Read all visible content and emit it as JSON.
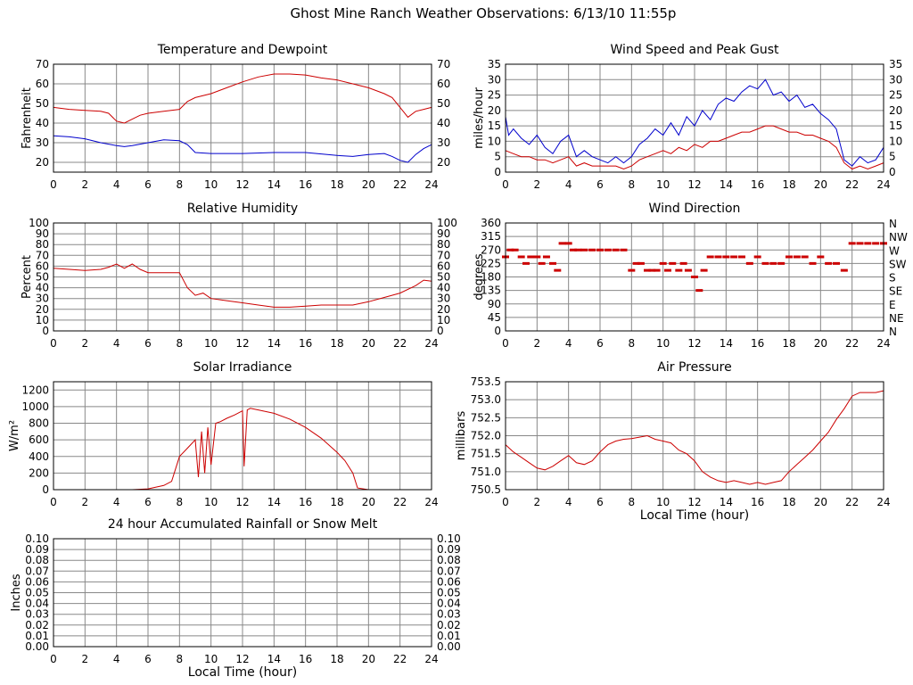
{
  "page": {
    "title": "Ghost Mine Ranch Weather Observations: 6/13/10 11:55p"
  },
  "colors": {
    "temperature": "#cc0000",
    "dewpoint": "#0000cc",
    "grid": "#888888",
    "axis": "#000000"
  },
  "chart_data": [
    {
      "id": "temp",
      "type": "line",
      "title": "Temperature and Dewpoint",
      "ylabel": "Fahrenheit",
      "ylim": [
        15,
        70
      ],
      "yticks": [
        20,
        30,
        40,
        50,
        60,
        70
      ],
      "ytick_labels": [
        "20",
        "30",
        "40",
        "50",
        "60",
        "70"
      ],
      "right_axis": true,
      "xlim": [
        0,
        24
      ],
      "xticks": [
        0,
        2,
        4,
        6,
        8,
        10,
        12,
        14,
        16,
        18,
        20,
        22,
        24
      ],
      "xtick_labels": [
        "0",
        "2",
        "4",
        "6",
        "8",
        "10",
        "12",
        "14",
        "16",
        "18",
        "20",
        "22",
        "24"
      ],
      "series": [
        {
          "color": "#cc0000",
          "x": [
            0,
            0.5,
            1,
            2,
            3,
            3.5,
            4,
            4.5,
            5,
            5.5,
            6,
            7,
            8,
            8.5,
            9,
            10,
            11,
            12,
            13,
            14,
            15,
            16,
            17,
            18,
            19,
            20,
            21,
            21.5,
            22,
            22.5,
            23,
            23.5,
            24
          ],
          "y": [
            48,
            47.5,
            47,
            46.5,
            46,
            45,
            41,
            40,
            42,
            44,
            45,
            46,
            47,
            51,
            53,
            55,
            58,
            61,
            63.5,
            65,
            65,
            64.5,
            63,
            62,
            60,
            58,
            55,
            53,
            48,
            43,
            46,
            47,
            48
          ]
        },
        {
          "color": "#0000cc",
          "x": [
            0,
            1,
            2,
            3,
            4,
            4.5,
            5,
            6,
            7,
            8,
            8.5,
            9,
            10,
            12,
            14,
            16,
            18,
            19,
            20,
            21,
            21.5,
            22,
            22.5,
            23,
            23.5,
            24
          ],
          "y": [
            33.5,
            33,
            32,
            30,
            28.5,
            28,
            28.5,
            30,
            31.5,
            31,
            29,
            25,
            24.5,
            24.5,
            25,
            25,
            23.5,
            23,
            24,
            24.5,
            23,
            21,
            20,
            24,
            27,
            29
          ]
        }
      ]
    },
    {
      "id": "wind",
      "type": "line",
      "title": "Wind Speed and Peak Gust",
      "ylabel": "miles/hour",
      "ylim": [
        0,
        35
      ],
      "yticks": [
        0,
        5,
        10,
        15,
        20,
        25,
        30,
        35
      ],
      "ytick_labels": [
        "0",
        "5",
        "10",
        "15",
        "20",
        "25",
        "30",
        "35"
      ],
      "right_axis": true,
      "xlim": [
        0,
        24
      ],
      "xticks": [
        0,
        2,
        4,
        6,
        8,
        10,
        12,
        14,
        16,
        18,
        20,
        22,
        24
      ],
      "xtick_labels": [
        "0",
        "2",
        "4",
        "6",
        "8",
        "10",
        "12",
        "14",
        "16",
        "18",
        "20",
        "22",
        "24"
      ],
      "series": [
        {
          "color": "#0000cc",
          "x": [
            0,
            0.2,
            0.5,
            1,
            1.5,
            2,
            2.5,
            3,
            3.5,
            4,
            4.5,
            5,
            5.5,
            6,
            6.5,
            7,
            7.5,
            8,
            8.5,
            9,
            9.5,
            10,
            10.5,
            11,
            11.5,
            12,
            12.5,
            13,
            13.5,
            14,
            14.5,
            15,
            15.5,
            16,
            16.5,
            17,
            17.5,
            18,
            18.5,
            19,
            19.5,
            20,
            20.5,
            21,
            21.5,
            22,
            22.5,
            23,
            23.5,
            24
          ],
          "y": [
            18,
            12,
            14,
            11,
            9,
            12,
            8,
            6,
            10,
            12,
            5,
            7,
            5,
            4,
            3,
            5,
            3,
            5,
            9,
            11,
            14,
            12,
            16,
            12,
            18,
            15,
            20,
            17,
            22,
            24,
            23,
            26,
            28,
            27,
            30,
            25,
            26,
            23,
            25,
            21,
            22,
            19,
            17,
            14,
            4,
            2,
            5,
            3,
            4,
            8
          ]
        },
        {
          "color": "#cc0000",
          "x": [
            0,
            0.5,
            1,
            1.5,
            2,
            2.5,
            3,
            3.5,
            4,
            4.5,
            5,
            5.5,
            6,
            6.5,
            7,
            7.5,
            8,
            8.5,
            9,
            9.5,
            10,
            10.5,
            11,
            11.5,
            12,
            12.5,
            13,
            13.5,
            14,
            14.5,
            15,
            15.5,
            16,
            16.5,
            17,
            17.5,
            18,
            18.5,
            19,
            19.5,
            20,
            20.5,
            21,
            21.5,
            22,
            22.5,
            23,
            23.5,
            24
          ],
          "y": [
            7,
            6,
            5,
            5,
            4,
            4,
            3,
            4,
            5,
            2,
            3,
            2,
            2,
            2,
            2,
            1,
            2,
            4,
            5,
            6,
            7,
            6,
            8,
            7,
            9,
            8,
            10,
            10,
            11,
            12,
            13,
            13,
            14,
            15,
            15,
            14,
            13,
            13,
            12,
            12,
            11,
            10,
            8,
            3,
            1,
            2,
            1,
            2,
            3
          ]
        }
      ]
    },
    {
      "id": "humidity",
      "type": "line",
      "title": "Relative Humidity",
      "ylabel": "Percent",
      "ylim": [
        0,
        100
      ],
      "yticks": [
        0,
        10,
        20,
        30,
        40,
        50,
        60,
        70,
        80,
        90,
        100
      ],
      "ytick_labels": [
        "0",
        "10",
        "20",
        "30",
        "40",
        "50",
        "60",
        "70",
        "80",
        "90",
        "100"
      ],
      "right_axis": true,
      "xlim": [
        0,
        24
      ],
      "xticks": [
        0,
        2,
        4,
        6,
        8,
        10,
        12,
        14,
        16,
        18,
        20,
        22,
        24
      ],
      "xtick_labels": [
        "0",
        "2",
        "4",
        "6",
        "8",
        "10",
        "12",
        "14",
        "16",
        "18",
        "20",
        "22",
        "24"
      ],
      "series": [
        {
          "color": "#cc0000",
          "x": [
            0,
            1,
            2,
            3,
            3.5,
            4,
            4.5,
            5,
            5.5,
            6,
            7,
            8,
            8.5,
            9,
            9.5,
            10,
            11,
            12,
            13,
            14,
            15,
            16,
            17,
            18,
            19,
            20,
            21,
            22,
            23,
            23.5,
            24
          ],
          "y": [
            58,
            57,
            56,
            57,
            59,
            62,
            58,
            62,
            57,
            54,
            54,
            54,
            40,
            33,
            35,
            30,
            28,
            26,
            24,
            22,
            22,
            23,
            24,
            24,
            24,
            27,
            31,
            35,
            42,
            47,
            46
          ]
        }
      ]
    },
    {
      "id": "direction",
      "type": "scatter",
      "title": "Wind Direction",
      "ylabel": "degrees",
      "ylim": [
        0,
        360
      ],
      "yticks": [
        0,
        45,
        90,
        135,
        180,
        225,
        270,
        315,
        360
      ],
      "ytick_labels": [
        "0",
        "45",
        "90",
        "135",
        "180",
        "225",
        "270",
        "315",
        "360"
      ],
      "right_tick_labels": [
        "N",
        "NE",
        "E",
        "SE",
        "S",
        "SW",
        "W",
        "NW",
        "N"
      ],
      "xlim": [
        0,
        24
      ],
      "xticks": [
        0,
        2,
        4,
        6,
        8,
        10,
        12,
        14,
        16,
        18,
        20,
        22,
        24
      ],
      "xtick_labels": [
        "0",
        "2",
        "4",
        "6",
        "8",
        "10",
        "12",
        "14",
        "16",
        "18",
        "20",
        "22",
        "24"
      ],
      "series": [
        {
          "color": "#cc0000",
          "x": [
            0,
            0.3,
            0.6,
            1,
            1.3,
            1.6,
            2,
            2.3,
            2.6,
            3,
            3.3,
            3.6,
            4,
            4.3,
            4.6,
            5,
            5.5,
            6,
            6.5,
            7,
            7.5,
            8,
            8.3,
            8.6,
            9,
            9.3,
            9.6,
            10,
            10.3,
            10.6,
            11,
            11.3,
            11.6,
            12,
            12.3,
            12.6,
            13,
            13.5,
            14,
            14.5,
            15,
            15.5,
            16,
            16.5,
            17,
            17.5,
            18,
            18.5,
            19,
            19.5,
            20,
            20.5,
            21,
            21.5,
            22,
            22.5,
            23,
            23.5,
            24
          ],
          "y": [
            247,
            270,
            270,
            247,
            225,
            247,
            247,
            225,
            247,
            225,
            202,
            292,
            292,
            270,
            270,
            270,
            270,
            270,
            270,
            270,
            270,
            202,
            225,
            225,
            202,
            202,
            202,
            225,
            202,
            225,
            202,
            225,
            202,
            180,
            135,
            202,
            247,
            247,
            247,
            247,
            247,
            225,
            247,
            225,
            225,
            225,
            247,
            247,
            247,
            225,
            247,
            225,
            225,
            202,
            292,
            292,
            292,
            292,
            292
          ]
        }
      ]
    },
    {
      "id": "solar",
      "type": "line",
      "title": "Solar Irradiance",
      "ylabel": "W/m²",
      "ylim": [
        0,
        1300
      ],
      "yticks": [
        0,
        200,
        400,
        600,
        800,
        1000,
        1200
      ],
      "ytick_labels": [
        "0",
        "200",
        "400",
        "600",
        "800",
        "1000",
        "1200"
      ],
      "xlim": [
        0,
        24
      ],
      "xticks": [
        0,
        2,
        4,
        6,
        8,
        10,
        12,
        14,
        16,
        18,
        20,
        22,
        24
      ],
      "xtick_labels": [
        "0",
        "2",
        "4",
        "6",
        "8",
        "10",
        "12",
        "14",
        "16",
        "18",
        "20",
        "22",
        "24"
      ],
      "series": [
        {
          "color": "#cc0000",
          "x": [
            0,
            5,
            6,
            7,
            7.5,
            8,
            8.5,
            9,
            9.2,
            9.4,
            9.6,
            9.8,
            10,
            10.3,
            10.6,
            11,
            11.5,
            12,
            12.1,
            12.3,
            12.5,
            13,
            14,
            15,
            16,
            17,
            18,
            18.5,
            19,
            19.3,
            20,
            24
          ],
          "y": [
            0,
            0,
            10,
            50,
            100,
            400,
            500,
            600,
            150,
            700,
            200,
            750,
            300,
            800,
            820,
            860,
            900,
            950,
            280,
            960,
            980,
            960,
            920,
            850,
            750,
            620,
            450,
            350,
            200,
            20,
            0,
            0
          ]
        }
      ]
    },
    {
      "id": "pressure",
      "type": "line",
      "title": "Air Pressure",
      "ylabel": "millibars",
      "xlabel": "Local Time (hour)",
      "ylim": [
        750.5,
        753.5
      ],
      "yticks": [
        750.5,
        751.0,
        751.5,
        752.0,
        752.5,
        753.0,
        753.5
      ],
      "ytick_labels": [
        "750.5",
        "751.0",
        "751.5",
        "752.0",
        "752.5",
        "753.0",
        "753.5"
      ],
      "xlim": [
        0,
        24
      ],
      "xticks": [
        0,
        2,
        4,
        6,
        8,
        10,
        12,
        14,
        16,
        18,
        20,
        22,
        24
      ],
      "xtick_labels": [
        "0",
        "2",
        "4",
        "6",
        "8",
        "10",
        "12",
        "14",
        "16",
        "18",
        "20",
        "22",
        "24"
      ],
      "series": [
        {
          "color": "#cc0000",
          "x": [
            0,
            0.5,
            1,
            1.5,
            2,
            2.5,
            3,
            3.5,
            4,
            4.5,
            5,
            5.5,
            6,
            6.5,
            7,
            7.5,
            8,
            8.5,
            9,
            9.5,
            10,
            10.5,
            11,
            11.5,
            12,
            12.5,
            13,
            13.5,
            14,
            14.5,
            15,
            15.5,
            16,
            16.5,
            17,
            17.5,
            18,
            18.5,
            19,
            19.5,
            20,
            20.5,
            21,
            21.5,
            22,
            22.5,
            23,
            23.5,
            24
          ],
          "y": [
            751.75,
            751.55,
            751.4,
            751.25,
            751.1,
            751.05,
            751.15,
            751.3,
            751.45,
            751.25,
            751.2,
            751.3,
            751.55,
            751.75,
            751.85,
            751.9,
            751.92,
            751.96,
            752.0,
            751.9,
            751.85,
            751.8,
            751.6,
            751.5,
            751.3,
            751.0,
            750.85,
            750.75,
            750.7,
            750.75,
            750.7,
            750.65,
            750.7,
            750.65,
            750.7,
            750.75,
            751.0,
            751.2,
            751.4,
            751.6,
            751.85,
            752.1,
            752.45,
            752.75,
            753.1,
            753.2,
            753.2,
            753.2,
            753.25
          ]
        }
      ]
    },
    {
      "id": "rain",
      "type": "line",
      "title": "24 hour Accumulated Rainfall or Snow Melt",
      "ylabel": "Inches",
      "xlabel": "Local Time (hour)",
      "ylim": [
        0,
        0.1
      ],
      "yticks": [
        0,
        0.01,
        0.02,
        0.03,
        0.04,
        0.05,
        0.06,
        0.07,
        0.08,
        0.09,
        0.1
      ],
      "ytick_labels": [
        "0.00",
        "0.01",
        "0.02",
        "0.03",
        "0.04",
        "0.05",
        "0.06",
        "0.07",
        "0.08",
        "0.09",
        "0.10"
      ],
      "right_axis": true,
      "xlim": [
        0,
        24
      ],
      "xticks": [
        0,
        2,
        4,
        6,
        8,
        10,
        12,
        14,
        16,
        18,
        20,
        22,
        24
      ],
      "xtick_labels": [
        "0",
        "2",
        "4",
        "6",
        "8",
        "10",
        "12",
        "14",
        "16",
        "18",
        "20",
        "22",
        "24"
      ],
      "series": [
        {
          "color": "#cc0000",
          "x": [
            0,
            24
          ],
          "y": [
            0,
            0
          ]
        }
      ]
    }
  ]
}
